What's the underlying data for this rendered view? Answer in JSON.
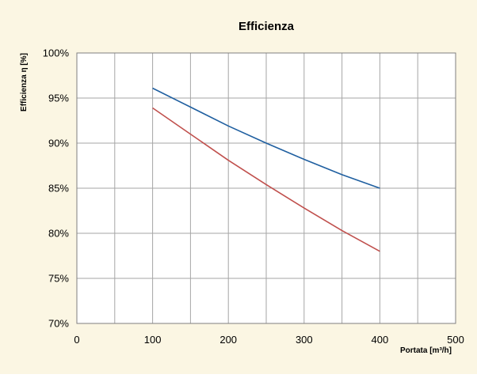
{
  "colors": {
    "background": "#fbf6e3",
    "plot_area": "#ffffff",
    "grid": "#a6a6a6",
    "axis": "#7f7f7f"
  },
  "chart_data": {
    "type": "line",
    "title": "Efficienza",
    "xlabel": "Portata [m³/h]",
    "ylabel": "Efficienza η [%]",
    "xlim": [
      0,
      500
    ],
    "ylim": [
      70,
      100
    ],
    "x_ticks": [
      0,
      100,
      200,
      300,
      400,
      500
    ],
    "x_minor_grid": [
      50,
      150,
      250,
      350,
      450
    ],
    "y_ticks": [
      70,
      75,
      80,
      85,
      90,
      95,
      100
    ],
    "y_tick_labels": [
      "70%",
      "75%",
      "80%",
      "85%",
      "90%",
      "95%",
      "100%"
    ],
    "grid": true,
    "legend": "none",
    "series": [
      {
        "color": "#1f5fa0",
        "x": [
          100,
          150,
          200,
          250,
          300,
          350,
          400
        ],
        "y": [
          96.1,
          94.0,
          91.9,
          90.0,
          88.2,
          86.5,
          85.0
        ]
      },
      {
        "color": "#c0504d",
        "x": [
          100,
          150,
          200,
          250,
          300,
          350,
          400
        ],
        "y": [
          93.9,
          91.0,
          88.1,
          85.4,
          82.8,
          80.3,
          78.0
        ]
      }
    ]
  }
}
